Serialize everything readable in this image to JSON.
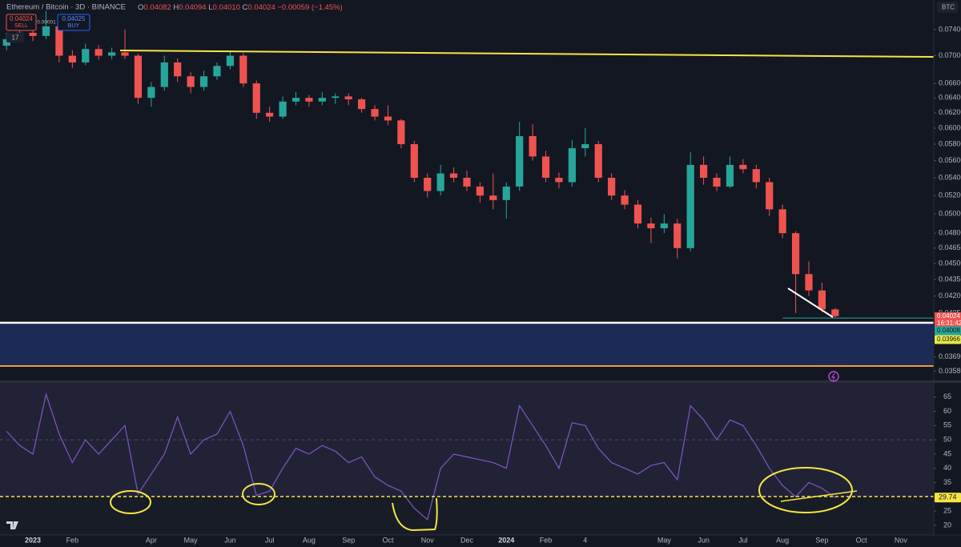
{
  "header": {
    "symbol": "Ethereum / Bitcoin · 3D · BINANCE",
    "open_label": "O",
    "open": "0.04082",
    "high_label": "H",
    "high": "0.04094",
    "low_label": "L",
    "low": "0.04010",
    "close_label": "C",
    "close": "0.04024",
    "change": "−0.00059 (−1.45%)",
    "sell_price": "0.04024",
    "sell": "SELL",
    "spread": "0.00001",
    "buy_price": "0.04025",
    "buy": "BUY",
    "badge": "17",
    "currency": "BTC",
    "countdown": "16:31:42"
  },
  "chart_data": [
    {
      "type": "candlestick",
      "log_scale": true,
      "up_color": "#26a69a",
      "down_color": "#ef5350",
      "categories": [
        null,
        null,
        "2023",
        null,
        null,
        "Feb",
        null,
        null,
        null,
        null,
        null,
        "Apr",
        null,
        null,
        "May",
        null,
        null,
        "Jun",
        null,
        null,
        "Jul",
        null,
        null,
        "Aug",
        null,
        null,
        "Sep",
        null,
        null,
        "Oct",
        null,
        null,
        "Nov",
        null,
        null,
        "Dec",
        null,
        null,
        "2024",
        null,
        null,
        "Feb",
        null,
        null,
        "4",
        null,
        null,
        null,
        null,
        null,
        "May",
        null,
        null,
        "Jun",
        null,
        null,
        "Jul",
        null,
        null,
        "Aug",
        null,
        null,
        "Sep",
        null,
        null,
        "Oct",
        null,
        null,
        "Nov",
        null,
        null
      ],
      "candles": {
        "open": [
          0.0715,
          0.0725,
          0.0735,
          0.073,
          0.0745,
          0.07,
          0.069,
          0.071,
          0.07,
          0.0705,
          0.07,
          0.064,
          0.0655,
          0.069,
          0.067,
          0.0655,
          0.067,
          0.0685,
          0.07,
          0.066,
          0.062,
          0.0615,
          0.0635,
          0.064,
          0.0635,
          0.064,
          0.0642,
          0.0638,
          0.0625,
          0.0615,
          0.061,
          0.058,
          0.054,
          0.0525,
          0.0545,
          0.054,
          0.053,
          0.052,
          0.0515,
          0.053,
          0.059,
          0.0565,
          0.054,
          0.0535,
          0.0575,
          0.058,
          0.054,
          0.052,
          0.051,
          0.049,
          0.0485,
          0.049,
          0.0465,
          0.0555,
          0.054,
          0.053,
          0.0555,
          0.055,
          0.0535,
          0.0505,
          0.048,
          0.044,
          0.0425,
          0.04082,
          null,
          null,
          null,
          null,
          null,
          null,
          null
        ],
        "high": [
          0.0735,
          0.0742,
          0.0748,
          0.077,
          0.075,
          0.0708,
          0.0718,
          0.0716,
          0.0712,
          0.074,
          0.0703,
          0.0662,
          0.07,
          0.0696,
          0.0676,
          0.0678,
          0.069,
          0.0708,
          0.0704,
          0.0664,
          0.0628,
          0.0642,
          0.0648,
          0.0644,
          0.0648,
          0.0646,
          0.0646,
          0.064,
          0.063,
          0.063,
          0.0612,
          0.0584,
          0.0545,
          0.0555,
          0.0552,
          0.0548,
          0.0535,
          0.0545,
          0.0535,
          0.0608,
          0.0605,
          0.0572,
          0.0546,
          0.0585,
          0.06,
          0.0584,
          0.0545,
          0.0526,
          0.0515,
          0.0496,
          0.05,
          0.0495,
          0.057,
          0.0565,
          0.0545,
          0.0565,
          0.0562,
          0.0555,
          0.054,
          0.051,
          0.0482,
          0.0452,
          0.0432,
          0.04094,
          null,
          null,
          null,
          null,
          null,
          null,
          null
        ],
        "low": [
          0.0708,
          0.072,
          0.0722,
          0.0725,
          0.069,
          0.0682,
          0.0686,
          0.0694,
          0.0695,
          0.0695,
          0.0632,
          0.0628,
          0.065,
          0.0662,
          0.0646,
          0.065,
          0.0665,
          0.068,
          0.0655,
          0.0612,
          0.0608,
          0.0612,
          0.063,
          0.0628,
          0.063,
          0.0632,
          0.063,
          0.062,
          0.061,
          0.0604,
          0.0575,
          0.0535,
          0.0518,
          0.052,
          0.0535,
          0.0525,
          0.0512,
          0.0505,
          0.0495,
          0.0525,
          0.056,
          0.0535,
          0.0528,
          0.053,
          0.0565,
          0.0535,
          0.0515,
          0.0505,
          0.0485,
          0.047,
          0.048,
          0.0455,
          0.0462,
          0.0532,
          0.0525,
          0.0528,
          0.0545,
          0.0528,
          0.0498,
          0.0475,
          0.0405,
          0.042,
          0.0406,
          0.0401,
          null,
          null,
          null,
          null,
          null,
          null,
          null
        ],
        "close": [
          0.0725,
          0.0735,
          0.073,
          0.0745,
          0.07,
          0.069,
          0.071,
          0.07,
          0.0705,
          0.07,
          0.064,
          0.0655,
          0.069,
          0.067,
          0.0655,
          0.067,
          0.0685,
          0.07,
          0.066,
          0.062,
          0.0615,
          0.0635,
          0.064,
          0.0635,
          0.064,
          0.0642,
          0.0638,
          0.0625,
          0.0615,
          0.061,
          0.058,
          0.054,
          0.0525,
          0.0545,
          0.054,
          0.053,
          0.052,
          0.0515,
          0.053,
          0.059,
          0.0565,
          0.054,
          0.0535,
          0.0575,
          0.058,
          0.054,
          0.052,
          0.051,
          0.049,
          0.0485,
          0.049,
          0.0465,
          0.0555,
          0.054,
          0.053,
          0.0555,
          0.055,
          0.0535,
          0.0505,
          0.048,
          0.044,
          0.0425,
          0.04082,
          0.04024,
          null,
          null,
          null,
          null,
          null,
          null,
          null
        ]
      },
      "ylim": [
        0.0351,
        0.0788
      ],
      "yticks": [
        {
          "value": 0.074,
          "label": "0.07400"
        },
        {
          "value": 0.07,
          "label": "0.07000"
        },
        {
          "value": 0.066,
          "label": "0.06600"
        },
        {
          "value": 0.064,
          "label": "0.06400"
        },
        {
          "value": 0.062,
          "label": "0.06200"
        },
        {
          "value": 0.06,
          "label": "0.06000"
        },
        {
          "value": 0.058,
          "label": "0.05800"
        },
        {
          "value": 0.056,
          "label": "0.05600"
        },
        {
          "value": 0.054,
          "label": "0.05400"
        },
        {
          "value": 0.052,
          "label": "0.05200"
        },
        {
          "value": 0.05,
          "label": "0.05000"
        },
        {
          "value": 0.048,
          "label": "0.04800"
        },
        {
          "value": 0.0465,
          "label": "0.04650"
        },
        {
          "value": 0.045,
          "label": "0.04500"
        },
        {
          "value": 0.0435,
          "label": "0.04350"
        },
        {
          "value": 0.042,
          "label": "0.04200"
        },
        {
          "value": 0.0405,
          "label": "0.04050"
        },
        {
          "value": 0.0369,
          "label": "0.03690"
        },
        {
          "value": 0.0358,
          "label": "0.03580"
        }
      ],
      "levels": [
        {
          "value": 0.04008,
          "color": "#26a69a"
        },
        {
          "value": 0.03966,
          "color": "#e8e84a"
        }
      ]
    },
    {
      "type": "line",
      "color": "#7e57c2",
      "values": [
        53,
        48,
        45,
        66,
        52,
        42,
        50,
        45,
        50,
        55,
        31,
        38,
        45,
        58,
        45,
        50,
        52,
        60,
        48,
        30.5,
        32,
        40,
        47,
        45,
        48,
        46,
        42,
        44,
        37,
        34,
        32,
        26,
        22,
        40,
        45,
        44,
        43,
        42,
        40,
        62,
        55,
        48,
        40,
        56,
        55,
        47,
        42,
        40,
        38,
        41,
        42,
        36,
        62,
        57,
        50,
        57,
        55,
        48,
        40,
        34,
        30,
        35,
        33,
        29.74,
        null,
        null,
        null,
        null,
        null,
        null,
        null
      ],
      "ylim": [
        16.6,
        70
      ],
      "yticks": [
        20,
        25,
        35,
        40,
        45,
        50,
        55,
        60,
        65
      ],
      "band": [
        30,
        70
      ],
      "midline": 50
    }
  ]
}
